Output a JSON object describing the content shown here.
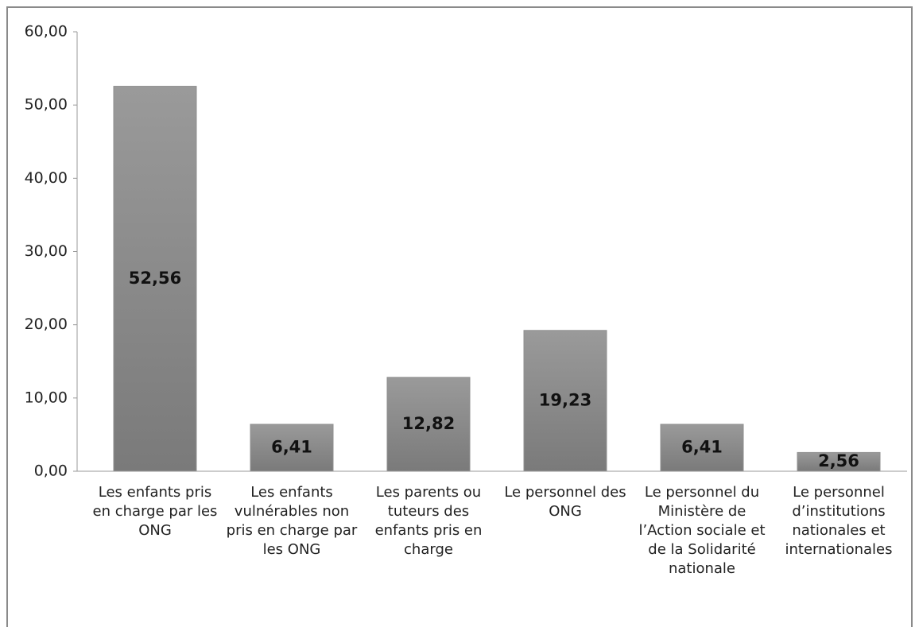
{
  "chart_data": {
    "type": "bar",
    "categories": [
      "Les enfants pris en charge par les ONG",
      "Les enfants vulnérables non pris en charge par les ONG",
      "Les parents ou tuteurs des enfants pris en charge",
      "Le personnel des ONG",
      "Le personnel du Ministère de l’Action sociale et de la Solidarité nationale",
      "Le personnel d’institutions nationales et internationales"
    ],
    "values": [
      52.56,
      6.41,
      12.82,
      19.23,
      6.41,
      2.56
    ],
    "value_labels": [
      "52,56",
      "6,41",
      "12,82",
      "19,23",
      "6,41",
      "2,56"
    ],
    "color": "#8f8f8f",
    "ylim": [
      0,
      60
    ],
    "yticks": [
      {
        "value": 0,
        "label": "0,00"
      },
      {
        "value": 10,
        "label": "10,00"
      },
      {
        "value": 20,
        "label": "20,00"
      },
      {
        "value": 30,
        "label": "30,00"
      },
      {
        "value": 40,
        "label": "40,00"
      },
      {
        "value": 50,
        "label": "50,00"
      },
      {
        "value": 60,
        "label": "60,00"
      }
    ],
    "grid": false
  }
}
